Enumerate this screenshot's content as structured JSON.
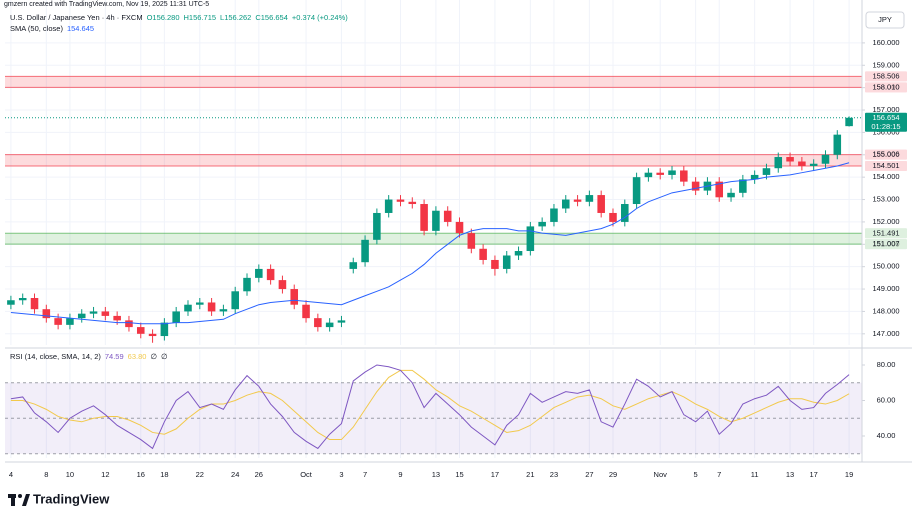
{
  "header": {
    "credit": "gmzern created with TradingView.com, Nov 19, 2025 11:31 UTC-5"
  },
  "chart_data": [
    {
      "type": "candlestick",
      "title": "U.S. Dollar / Japanese Yen · 4h · FXCM",
      "legend_values": [
        "O156.280",
        "H156.715",
        "L156.262",
        "C156.654",
        "+0.374 (+0.24%)"
      ],
      "currency": "JPY",
      "categories": [
        "4",
        null,
        null,
        "8",
        null,
        "10",
        null,
        null,
        "12",
        null,
        null,
        "16",
        null,
        "18",
        null,
        null,
        "22",
        null,
        null,
        "24",
        null,
        "26",
        null,
        null,
        null,
        "Oct",
        null,
        null,
        "3",
        null,
        "7",
        null,
        null,
        "9",
        null,
        null,
        "13",
        null,
        "15",
        null,
        null,
        "17",
        null,
        null,
        "21",
        null,
        "23",
        null,
        null,
        "27",
        null,
        "29",
        null,
        null,
        null,
        "Nov",
        null,
        null,
        "5",
        null,
        "7",
        null,
        null,
        "11",
        null,
        null,
        "13",
        null,
        "17",
        null,
        null,
        "19"
      ],
      "open": [
        148.3,
        148.5,
        148.6,
        148.1,
        147.7,
        147.4,
        147.7,
        147.9,
        148.0,
        147.8,
        147.6,
        147.3,
        147.0,
        146.9,
        147.5,
        148.0,
        148.3,
        148.4,
        148.0,
        148.1,
        148.9,
        149.5,
        149.9,
        149.4,
        149.0,
        148.3,
        147.7,
        147.3,
        147.5,
        149.9,
        150.2,
        151.2,
        152.4,
        153.0,
        152.9,
        152.8,
        151.6,
        152.5,
        152.0,
        151.5,
        150.8,
        150.3,
        149.9,
        150.5,
        150.7,
        151.8,
        152.0,
        152.6,
        153.0,
        152.9,
        153.2,
        152.4,
        152.0,
        152.8,
        154.0,
        154.2,
        154.1,
        154.3,
        153.8,
        153.4,
        153.8,
        153.1,
        153.3,
        153.9,
        154.1,
        154.4,
        154.9,
        154.7,
        154.5,
        154.6,
        155.0,
        156.28
      ],
      "high": [
        148.7,
        148.8,
        148.8,
        148.3,
        147.9,
        147.9,
        148.1,
        148.2,
        148.2,
        148.0,
        147.8,
        147.5,
        147.2,
        147.7,
        148.2,
        148.5,
        148.6,
        148.6,
        148.3,
        149.1,
        149.7,
        150.1,
        150.1,
        149.6,
        149.2,
        148.5,
        147.9,
        147.7,
        147.8,
        150.4,
        151.4,
        152.6,
        153.2,
        153.2,
        153.1,
        153.0,
        152.7,
        152.7,
        152.2,
        151.7,
        151.0,
        150.5,
        150.7,
        150.9,
        152.0,
        152.2,
        152.8,
        153.2,
        153.2,
        153.4,
        153.4,
        152.6,
        153.0,
        154.2,
        154.4,
        154.4,
        154.5,
        154.5,
        154.0,
        154.0,
        154.0,
        153.5,
        154.1,
        154.3,
        154.6,
        155.1,
        155.1,
        154.9,
        154.8,
        155.2,
        156.1,
        156.715
      ],
      "low": [
        148.1,
        148.3,
        147.9,
        147.5,
        147.2,
        147.2,
        147.5,
        147.7,
        147.6,
        147.4,
        147.1,
        146.8,
        146.6,
        146.7,
        147.3,
        147.8,
        148.1,
        147.8,
        147.8,
        147.9,
        148.7,
        149.3,
        149.2,
        148.8,
        148.1,
        147.5,
        147.1,
        147.1,
        147.3,
        149.7,
        150.0,
        151.0,
        152.2,
        152.7,
        152.6,
        151.4,
        151.4,
        151.8,
        151.3,
        150.6,
        150.1,
        149.6,
        149.7,
        150.3,
        150.5,
        151.6,
        151.8,
        152.4,
        152.7,
        152.7,
        152.2,
        151.8,
        151.8,
        152.6,
        153.8,
        153.9,
        153.9,
        153.6,
        153.2,
        153.2,
        152.9,
        152.9,
        153.1,
        153.7,
        153.9,
        154.2,
        154.5,
        154.3,
        154.3,
        154.4,
        154.8,
        156.262
      ],
      "close": [
        148.5,
        148.6,
        148.1,
        147.7,
        147.4,
        147.7,
        147.9,
        148.0,
        147.8,
        147.6,
        147.3,
        147.0,
        146.9,
        147.5,
        148.0,
        148.3,
        148.4,
        148.0,
        148.1,
        148.9,
        149.5,
        149.9,
        149.4,
        149.0,
        148.3,
        147.7,
        147.3,
        147.5,
        147.6,
        150.2,
        151.2,
        152.4,
        153.0,
        152.9,
        152.8,
        151.6,
        152.5,
        152.0,
        151.5,
        150.8,
        150.3,
        149.9,
        150.5,
        150.7,
        151.8,
        152.0,
        152.6,
        153.0,
        152.9,
        153.2,
        152.4,
        152.0,
        152.8,
        154.0,
        154.2,
        154.1,
        154.3,
        153.8,
        153.4,
        153.8,
        153.1,
        153.3,
        153.9,
        154.1,
        154.4,
        154.9,
        154.7,
        154.5,
        154.6,
        155.0,
        155.9,
        156.654
      ],
      "up_color": "#089981",
      "down_color": "#f23645",
      "overlays": [
        {
          "name": "SMA (50, close)",
          "value_label": "154.645",
          "color": "#2962ff",
          "values": [
            147.95,
            147.9,
            147.85,
            147.8,
            147.75,
            147.7,
            147.65,
            147.6,
            147.55,
            147.5,
            147.5,
            147.45,
            147.45,
            147.45,
            147.5,
            147.5,
            147.55,
            147.6,
            147.65,
            147.9,
            148.1,
            148.3,
            148.4,
            148.45,
            148.5,
            148.45,
            148.4,
            148.35,
            148.3,
            148.5,
            148.7,
            148.9,
            149.1,
            149.4,
            149.7,
            150.1,
            150.6,
            151.0,
            151.4,
            151.6,
            151.7,
            151.7,
            151.7,
            151.6,
            151.6,
            151.5,
            151.45,
            151.4,
            151.5,
            151.6,
            151.7,
            151.9,
            152.2,
            152.6,
            152.9,
            153.1,
            153.3,
            153.4,
            153.5,
            153.6,
            153.7,
            153.8,
            153.85,
            153.9,
            154.0,
            154.05,
            154.1,
            154.2,
            154.3,
            154.4,
            154.5,
            154.645
          ]
        }
      ],
      "zones": [
        {
          "low": 158.01,
          "high": 158.506,
          "low_label": "158.010",
          "high_label": "158.506",
          "color": "#f23645"
        },
        {
          "low": 154.501,
          "high": 155.006,
          "low_label": "154.501",
          "high_label": "155.006",
          "color": "#f23645"
        },
        {
          "low": 151.007,
          "high": 151.491,
          "low_label": "151.007",
          "high_label": "151.491",
          "color": "#4caf50"
        }
      ],
      "last_label": "156.654",
      "countdown": "01:28:15",
      "ylim": [
        146.5,
        161.47
      ],
      "yticks": [
        {
          "value": 147,
          "label": "147.000"
        },
        {
          "value": 148,
          "label": "148.000"
        },
        {
          "value": 149,
          "label": "149.000"
        },
        {
          "value": 150,
          "label": "150.000"
        },
        {
          "value": 151,
          "label": "151.000"
        },
        {
          "value": 152,
          "label": "152.000"
        },
        {
          "value": 153,
          "label": "153.000"
        },
        {
          "value": 154,
          "label": "154.000"
        },
        {
          "value": 155,
          "label": "155.000"
        },
        {
          "value": 156,
          "label": "156.000"
        },
        {
          "value": 157,
          "label": "157.000"
        },
        {
          "value": 158,
          "label": "158.000"
        },
        {
          "value": 159,
          "label": "159.000"
        },
        {
          "value": 160,
          "label": "160.000"
        }
      ],
      "grid": true
    },
    {
      "type": "line",
      "title": "RSI (14, close, SMA, 14, 2)",
      "extra_labels": [
        "∅",
        "∅"
      ],
      "series": [
        {
          "value_label": "74.59",
          "color": "#7e57c2",
          "values": [
            61,
            62,
            53,
            48,
            42,
            50,
            54,
            57,
            52,
            46,
            42,
            38,
            33,
            48,
            60,
            65,
            56,
            58,
            55,
            66,
            74,
            68,
            58,
            51,
            42,
            37,
            33,
            41,
            47,
            71,
            76,
            80,
            79,
            77,
            70,
            56,
            64,
            58,
            52,
            45,
            40,
            35,
            46,
            52,
            64,
            59,
            62,
            65,
            64,
            66,
            48,
            45,
            58,
            72,
            68,
            62,
            65,
            52,
            48,
            54,
            41,
            47,
            58,
            61,
            63,
            68,
            60,
            55,
            56,
            64,
            69,
            74.59
          ]
        },
        {
          "value_label": "63.80",
          "color": "#f2c94c",
          "values": [
            60,
            60,
            58,
            55,
            51,
            49,
            48,
            50,
            51,
            51,
            49,
            46,
            42,
            41,
            44,
            50,
            55,
            58,
            58,
            60,
            63,
            65,
            64,
            60,
            54,
            48,
            42,
            38,
            38,
            45,
            55,
            65,
            73,
            77,
            77,
            72,
            66,
            62,
            57,
            54,
            50,
            46,
            42,
            43,
            46,
            51,
            56,
            59,
            62,
            63,
            61,
            57,
            55,
            58,
            61,
            63,
            65,
            62,
            58,
            55,
            51,
            48,
            50,
            53,
            56,
            59,
            61,
            61,
            59,
            58,
            60,
            63.8
          ]
        }
      ],
      "bands": {
        "upper": 70,
        "middle": 50,
        "lower": 30
      },
      "ylim": [
        27.6,
        88.45
      ],
      "yticks": [
        {
          "value": 40,
          "label": "40.00"
        },
        {
          "value": 60,
          "label": "60.00"
        },
        {
          "value": 80,
          "label": "80.00"
        }
      ]
    }
  ],
  "footer": {
    "brand": "TradingView"
  }
}
